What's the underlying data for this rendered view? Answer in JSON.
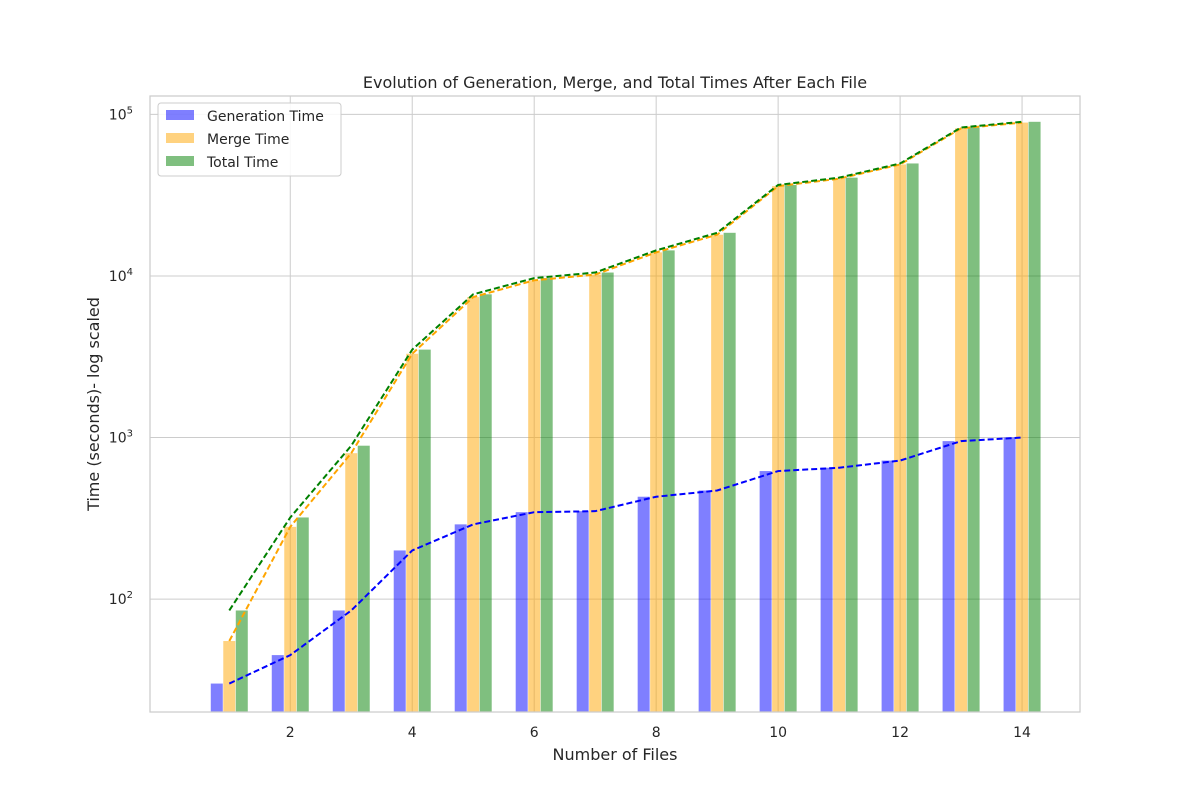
{
  "chart_data": {
    "type": "bar",
    "title": "Evolution of Generation, Merge, and Total Times After Each File",
    "xlabel": "Number of Files",
    "ylabel": "Time (seconds)- log scaled",
    "yscale": "log",
    "ylim": [
      20,
      130000
    ],
    "xlim": [
      -0.3,
      14.95
    ],
    "x": [
      1,
      2,
      3,
      4,
      5,
      6,
      7,
      8,
      9,
      10,
      11,
      12,
      13,
      14
    ],
    "xticks": [
      2,
      4,
      6,
      8,
      10,
      12,
      14
    ],
    "yticks": [
      {
        "value": 100,
        "base": "10",
        "exp": "2"
      },
      {
        "value": 1000,
        "base": "10",
        "exp": "3"
      },
      {
        "value": 10000,
        "base": "10",
        "exp": "4"
      },
      {
        "value": 100000,
        "base": "10",
        "exp": "5"
      }
    ],
    "grid": true,
    "legend_position": "top-left",
    "series": [
      {
        "name": "Generation Time",
        "color": "#0000ff",
        "values": [
          30,
          45,
          85,
          200,
          290,
          345,
          350,
          430,
          470,
          620,
          650,
          720,
          950,
          1000
        ]
      },
      {
        "name": "Merge Time",
        "color": "#ffa500",
        "values": [
          55,
          280,
          800,
          3300,
          7400,
          9400,
          10200,
          14000,
          18000,
          36000,
          40000,
          49000,
          82000,
          89000
        ]
      },
      {
        "name": "Total Time",
        "color": "#008000",
        "values": [
          85,
          320,
          890,
          3500,
          7700,
          9700,
          10500,
          14400,
          18500,
          36600,
          40600,
          49700,
          83000,
          90000
        ]
      }
    ]
  }
}
